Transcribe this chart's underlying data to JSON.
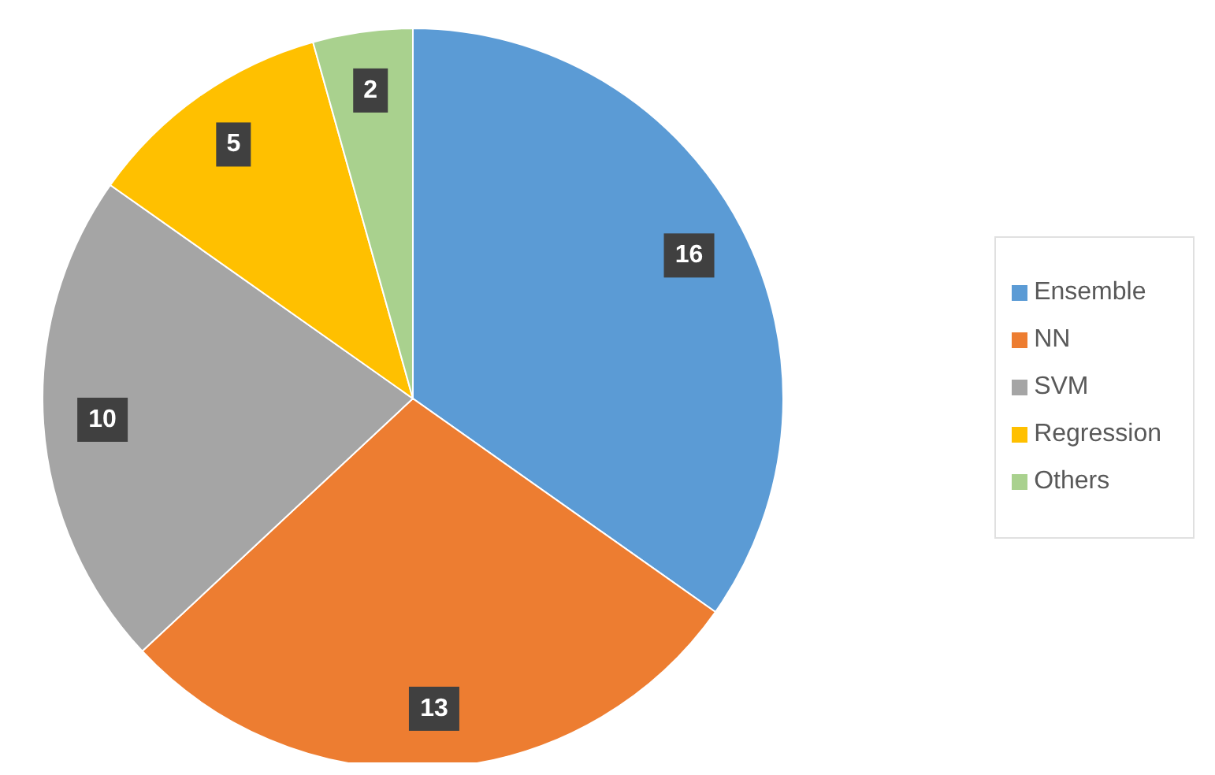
{
  "chart_data": {
    "type": "pie",
    "categories": [
      "Ensemble",
      "NN",
      "SVM",
      "Regression",
      "Others"
    ],
    "values": [
      16,
      13,
      10,
      5,
      2
    ],
    "colors": [
      "#5b9bd5",
      "#ed7d31",
      "#a5a5a5",
      "#ffc000",
      "#a9d18e"
    ],
    "data_labels": true,
    "legend": "right"
  }
}
